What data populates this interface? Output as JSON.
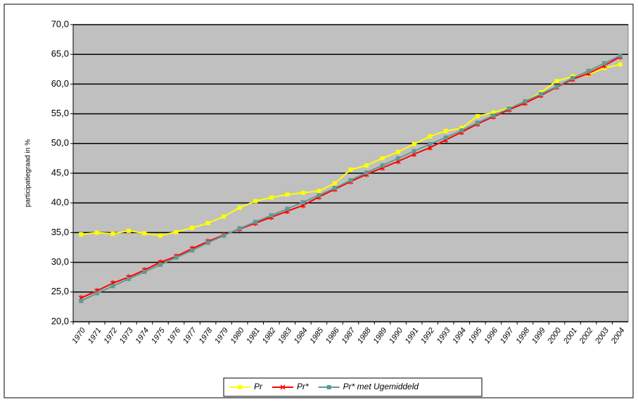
{
  "chart_data": {
    "type": "line",
    "y_label": "participatiegraad in %",
    "categories": [
      "1970",
      "1971",
      "1972",
      "1973",
      "1974",
      "1975",
      "1976",
      "1977",
      "1978",
      "1979",
      "1980",
      "1981",
      "1982",
      "1983",
      "1984",
      "1985",
      "1986",
      "1987",
      "1988",
      "1989",
      "1990",
      "1991",
      "1992",
      "1993",
      "1994",
      "1995",
      "1996",
      "1997",
      "1998",
      "1999",
      "2000",
      "2001",
      "2002",
      "2003",
      "2004"
    ],
    "series": [
      {
        "name": "Pr",
        "color": "#ffff00",
        "marker": "square",
        "values": [
          34.7,
          35.0,
          34.8,
          35.3,
          34.9,
          34.5,
          35.1,
          35.8,
          36.6,
          37.7,
          39.2,
          40.3,
          40.9,
          41.4,
          41.7,
          42.0,
          43.3,
          45.6,
          46.3,
          47.5,
          48.6,
          49.9,
          51.2,
          52.1,
          52.6,
          54.6,
          55.2,
          56.0,
          57.0,
          58.6,
          60.5,
          61.3,
          61.6,
          62.7,
          63.3
        ]
      },
      {
        "name": "Pr*",
        "color": "#ff0000",
        "marker": "star",
        "values": [
          24.0,
          25.2,
          26.5,
          27.5,
          28.7,
          30.0,
          31.0,
          32.3,
          33.5,
          34.6,
          35.6,
          36.6,
          37.6,
          38.6,
          39.6,
          41.0,
          42.3,
          43.6,
          44.8,
          45.9,
          47.0,
          48.2,
          49.3,
          50.6,
          51.9,
          53.3,
          54.5,
          55.7,
          56.8,
          58.1,
          59.5,
          60.8,
          61.8,
          63.1,
          64.6
        ]
      },
      {
        "name": "Pr* met Ugemiddeld",
        "color": "#5f9a93",
        "marker": "square",
        "values": [
          23.5,
          24.8,
          26.0,
          27.2,
          28.4,
          29.6,
          30.8,
          32.0,
          33.3,
          34.5,
          35.7,
          36.8,
          37.9,
          39.0,
          40.1,
          41.3,
          42.5,
          43.8,
          45.1,
          46.3,
          47.5,
          48.7,
          49.9,
          51.0,
          52.2,
          53.5,
          54.7,
          55.9,
          57.1,
          58.3,
          59.6,
          61.0,
          62.2,
          63.5,
          64.8
        ]
      }
    ],
    "ylim": [
      20,
      70
    ],
    "yticks": [
      {
        "value": 20,
        "label": "20,0"
      },
      {
        "value": 25,
        "label": "25,0"
      },
      {
        "value": 30,
        "label": "30,0"
      },
      {
        "value": 35,
        "label": "35,0"
      },
      {
        "value": 40,
        "label": "40,0"
      },
      {
        "value": 45,
        "label": "45,0"
      },
      {
        "value": 50,
        "label": "50,0"
      },
      {
        "value": 55,
        "label": "55,0"
      },
      {
        "value": 60,
        "label": "60,0"
      },
      {
        "value": 65,
        "label": "65,0"
      },
      {
        "value": 70,
        "label": "70,0"
      }
    ],
    "grid": true,
    "legend": "bottom",
    "plot_background": "#c0c0c0"
  }
}
